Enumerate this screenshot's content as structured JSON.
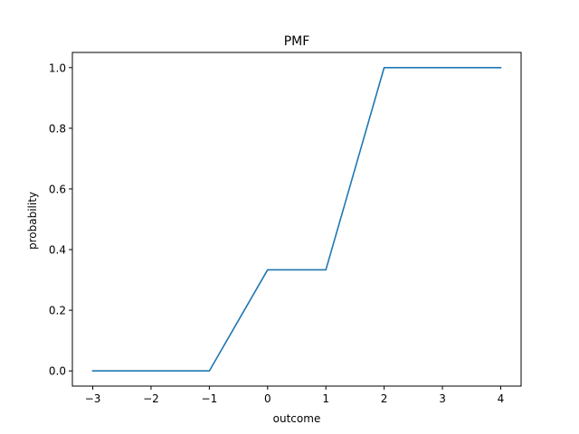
{
  "chart_data": {
    "type": "line",
    "title": "PMF",
    "xlabel": "outcome",
    "ylabel": "probability",
    "xlim": [
      -3.35,
      4.35
    ],
    "ylim": [
      -0.05,
      1.05
    ],
    "grid": false,
    "xticks": [
      -3,
      -2,
      -1,
      0,
      1,
      2,
      3,
      4
    ],
    "xtick_labels": [
      "−3",
      "−2",
      "−1",
      "0",
      "1",
      "2",
      "3",
      "4"
    ],
    "yticks": [
      0.0,
      0.2,
      0.4,
      0.6,
      0.8,
      1.0
    ],
    "ytick_labels": [
      "0.0",
      "0.2",
      "0.4",
      "0.6",
      "0.8",
      "1.0"
    ],
    "series": [
      {
        "color": "#1f77b4",
        "x": [
          -3,
          -2,
          -1,
          0,
          1,
          2,
          3,
          4
        ],
        "y": [
          0.0,
          0.0,
          0.0,
          0.3333,
          0.3333,
          1.0,
          1.0,
          1.0
        ]
      }
    ]
  }
}
